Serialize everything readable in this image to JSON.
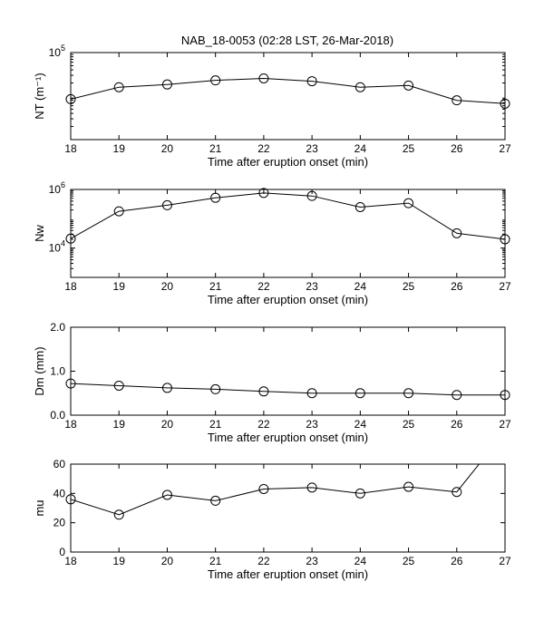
{
  "figure": {
    "title": "NAB_18-0053 (02:28 LST, 26-Mar-2018)"
  },
  "chart_data": [
    {
      "type": "line",
      "title": "NAB_18-0053 (02:28 LST, 26-Mar-2018)",
      "ylabel": "NT (m⁻¹)",
      "xlabel": "Time after eruption onset (min)",
      "xlim": [
        18,
        27
      ],
      "xticks": [
        "18",
        "19",
        "20",
        "21",
        "22",
        "23",
        "24",
        "25",
        "26",
        "27"
      ],
      "yscale": "log",
      "ylim": [
        1000,
        100000
      ],
      "yticks": [
        {
          "value": 100000,
          "base": "10",
          "exp": "5"
        }
      ],
      "grid": false,
      "legend": "none",
      "x": [
        18,
        19,
        20,
        21,
        22,
        23,
        24,
        25,
        26,
        27
      ],
      "y": [
        8500,
        16000,
        18500,
        23000,
        25500,
        22000,
        16000,
        17500,
        8000,
        6700
      ]
    },
    {
      "type": "line",
      "ylabel": "Nw",
      "xlabel": "Time after eruption onset (min)",
      "xlim": [
        18,
        27
      ],
      "xticks": [
        "18",
        "19",
        "20",
        "21",
        "22",
        "23",
        "24",
        "25",
        "26",
        "27"
      ],
      "yscale": "log",
      "ylim": [
        1000,
        1000000
      ],
      "yticks": [
        {
          "value": 1000000,
          "base": "10",
          "exp": "6"
        },
        {
          "value": 10000,
          "base": "10",
          "exp": "4"
        }
      ],
      "grid": false,
      "legend": "none",
      "x": [
        18,
        19,
        20,
        21,
        22,
        23,
        24,
        25,
        26,
        27
      ],
      "y": [
        21000,
        180000,
        290000,
        520000,
        760000,
        600000,
        250000,
        340000,
        32000,
        20000
      ]
    },
    {
      "type": "line",
      "ylabel": "Dm (mm)",
      "xlabel": "Time after eruption onset (min)",
      "xlim": [
        18,
        27
      ],
      "xticks": [
        "18",
        "19",
        "20",
        "21",
        "22",
        "23",
        "24",
        "25",
        "26",
        "27"
      ],
      "yscale": "linear",
      "ylim": [
        0,
        2
      ],
      "yticks": [
        {
          "value": 2,
          "label": "2.0"
        },
        {
          "value": 1,
          "label": "1.0"
        },
        {
          "value": 0,
          "label": "0.0"
        }
      ],
      "grid": false,
      "legend": "none",
      "x": [
        18,
        19,
        20,
        21,
        22,
        23,
        24,
        25,
        26,
        27
      ],
      "y": [
        0.72,
        0.67,
        0.62,
        0.59,
        0.54,
        0.5,
        0.5,
        0.5,
        0.46,
        0.46
      ]
    },
    {
      "type": "line",
      "ylabel": "mu",
      "xlabel": "Time after eruption onset (min)",
      "xlim": [
        18,
        27
      ],
      "xticks": [
        "18",
        "19",
        "20",
        "21",
        "22",
        "23",
        "24",
        "25",
        "26",
        "27"
      ],
      "yscale": "linear",
      "ylim": [
        0,
        60
      ],
      "yticks": [
        {
          "value": 60,
          "label": "60"
        },
        {
          "value": 40,
          "label": "40"
        },
        {
          "value": 20,
          "label": "20"
        },
        {
          "value": 0,
          "label": "0"
        }
      ],
      "grid": false,
      "legend": "none",
      "x": [
        18,
        19,
        20,
        21,
        22,
        23,
        24,
        25,
        26,
        27
      ],
      "y": [
        36,
        25.5,
        39,
        35,
        43,
        44,
        40,
        44.5,
        41,
        82
      ],
      "markers": [
        true,
        true,
        true,
        true,
        true,
        true,
        true,
        true,
        true,
        false
      ]
    }
  ]
}
